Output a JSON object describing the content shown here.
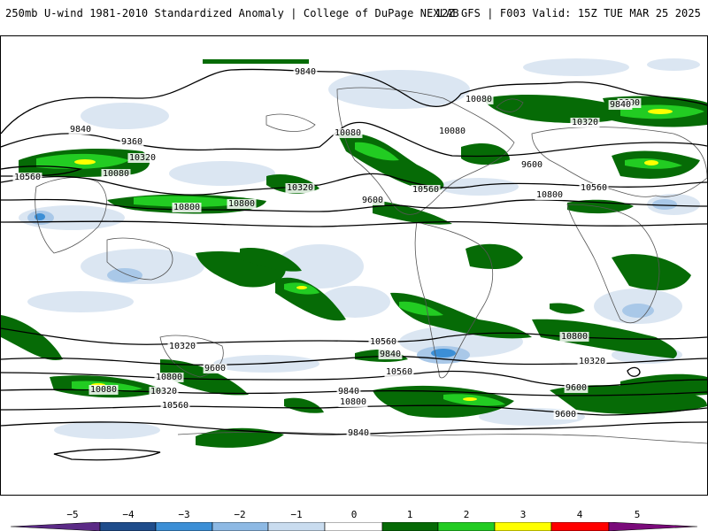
{
  "header": {
    "title": "250mb U-wind 1981-2010 Standardized Anomaly | College of DuPage NEXLAB",
    "run_info": "12Z GFS | F003 Valid: 15Z TUE MAR 25 2025"
  },
  "map": {
    "contour_labels": [
      "9840",
      "9600",
      "10080",
      "10320",
      "10560",
      "10800",
      "9360",
      "10080",
      "10320",
      "10560",
      "10800",
      "9600",
      "9840",
      "10080",
      "10320",
      "10560",
      "10800",
      "9600",
      "9840",
      "10080",
      "10320",
      "10560",
      "10800",
      "9840",
      "9600",
      "10320",
      "10800",
      "10560",
      "10080",
      "9840",
      "9600",
      "10320",
      "10560",
      "10800",
      "9600",
      "9840"
    ],
    "colors": {
      "neg_1": "#dbe6f2",
      "neg_2": "#a9c8e8",
      "neg_3": "#3c8fd6",
      "pos_1": "#066b06",
      "pos_2": "#22cc22",
      "pos_3": "#ffff00",
      "contour": "#000000",
      "coast": "#555555"
    }
  },
  "colorbar": {
    "ticks": [
      "−5",
      "−4",
      "−3",
      "−2",
      "−1",
      "0",
      "1",
      "2",
      "3",
      "4",
      "5"
    ],
    "segments": [
      {
        "color": "#5b2a86"
      },
      {
        "color": "#1f4d8c"
      },
      {
        "color": "#3c8fd6"
      },
      {
        "color": "#8db9e4"
      },
      {
        "color": "#c9dcef"
      },
      {
        "color": "#ffffff"
      },
      {
        "color": "#066b06"
      },
      {
        "color": "#22cc22"
      },
      {
        "color": "#ffff00"
      },
      {
        "color": "#ff0000"
      },
      {
        "color": "#7a0a7a"
      }
    ]
  }
}
